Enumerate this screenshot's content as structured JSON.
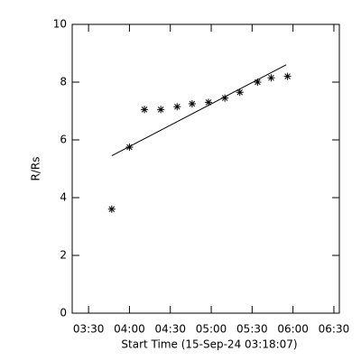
{
  "chart_data": {
    "type": "scatter",
    "xlabel": "Start Time (15-Sep-24 03:18:07)",
    "ylabel": "R/Rs",
    "x": [
      227,
      240,
      251,
      263,
      275,
      286,
      298,
      310,
      321,
      334,
      344,
      356
    ],
    "values": [
      3.6,
      5.75,
      7.05,
      7.05,
      7.15,
      7.25,
      7.3,
      7.45,
      7.65,
      8.0,
      8.15,
      8.2
    ],
    "fit_line": {
      "x": [
        227,
        355
      ],
      "values": [
        5.45,
        8.6
      ]
    },
    "color": "#000000",
    "xlim": [
      198,
      394
    ],
    "ylim": [
      0,
      10
    ],
    "xticks": [
      {
        "value": 210,
        "label": "03:30"
      },
      {
        "value": 240,
        "label": "04:00"
      },
      {
        "value": 270,
        "label": "04:30"
      },
      {
        "value": 300,
        "label": "05:00"
      },
      {
        "value": 330,
        "label": "05:30"
      },
      {
        "value": 360,
        "label": "06:00"
      },
      {
        "value": 390,
        "label": "06:30"
      }
    ],
    "yticks": [
      0,
      2,
      4,
      6,
      8,
      10
    ]
  }
}
